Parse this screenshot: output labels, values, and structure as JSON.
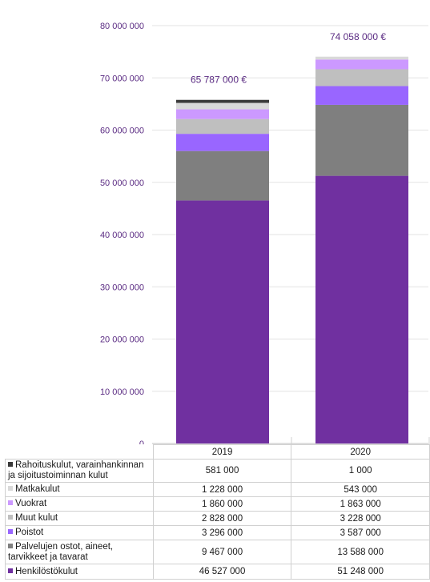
{
  "chart_data": {
    "type": "bar",
    "stacked": true,
    "categories": [
      "2019",
      "2020"
    ],
    "totals": [
      "65 787 000 €",
      "74 058 000 €"
    ],
    "ylim": [
      0,
      80000000
    ],
    "y_ticks": [
      "0",
      "10 000 000",
      "20 000 000",
      "30 000 000",
      "40 000 000",
      "50 000 000",
      "60 000 000",
      "70 000 000",
      "80 000 000"
    ],
    "series": [
      {
        "name": "Henkilöstökulut",
        "color": "#7030a0",
        "values": [
          46527000,
          51248000
        ],
        "display": [
          "46 527 000",
          "51 248 000"
        ]
      },
      {
        "name": "Palvelujen ostot, aineet, tarvikkeet ja tavarat",
        "color": "#7f7f7f",
        "values": [
          9467000,
          13588000
        ],
        "display": [
          "9 467 000",
          "13 588 000"
        ]
      },
      {
        "name": "Poistot",
        "color": "#9966ff",
        "values": [
          3296000,
          3587000
        ],
        "display": [
          "3 296 000",
          "3 587 000"
        ]
      },
      {
        "name": "Muut kulut",
        "color": "#bfbfbf",
        "values": [
          2828000,
          3228000
        ],
        "display": [
          "2 828 000",
          "3 228 000"
        ]
      },
      {
        "name": "Vuokrat",
        "color": "#cc99ff",
        "values": [
          1860000,
          1863000
        ],
        "display": [
          "1 860 000",
          "1 863 000"
        ]
      },
      {
        "name": "Matkakulut",
        "color": "#d9d9d9",
        "values": [
          1228000,
          543000
        ],
        "display": [
          "1 228 000",
          "543 000"
        ]
      },
      {
        "name": "Rahoituskulut, varainhankinnan ja sijoitustoiminnan kulut",
        "color": "#3a3a3a",
        "values": [
          581000,
          1000
        ],
        "display": [
          "581 000",
          "1 000"
        ]
      }
    ]
  }
}
